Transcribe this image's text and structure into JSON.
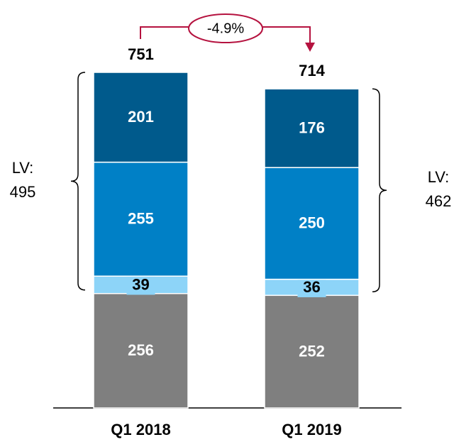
{
  "chart_data": {
    "type": "stacked_bar",
    "categories": [
      "Q1 2018",
      "Q1 2019"
    ],
    "series": [
      {
        "color": "#7f7f7f",
        "values": [
          256,
          252
        ]
      },
      {
        "color": "#8dd4f8",
        "values": [
          39,
          36
        ]
      },
      {
        "color": "#0080c6",
        "values": [
          255,
          250
        ]
      },
      {
        "color": "#005a8c",
        "values": [
          201,
          176
        ]
      }
    ],
    "totals": [
      751,
      714
    ],
    "change": {
      "value": -4.9,
      "label": "-4.9%",
      "color": "#b5123f"
    },
    "brackets": [
      {
        "label": "LV:",
        "value": 495
      },
      {
        "label": "LV:",
        "value": 462
      }
    ]
  }
}
